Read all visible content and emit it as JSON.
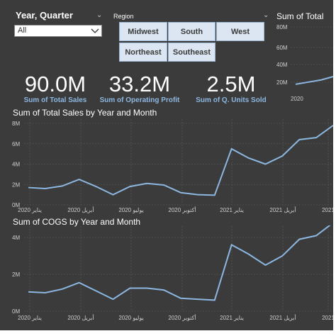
{
  "year_quarter_slicer": {
    "title": "Year, Quarter",
    "selected": "All"
  },
  "region_slicer": {
    "title": "Region",
    "buttons": [
      "Midwest",
      "South",
      "West",
      "Northeast",
      "Southeast"
    ]
  },
  "kpis": [
    {
      "value": "90.0M",
      "label": "Sum of Total Sales"
    },
    {
      "value": "33.2M",
      "label": "Sum of Operating Profit"
    },
    {
      "value": "2.5M",
      "label": "Sum of Q. Units Sold"
    }
  ],
  "colors": {
    "background": "#3b3b3b",
    "line": "#8cb7e0",
    "accent_text": "#8cb7e0",
    "button_fill": "#dce6f2"
  },
  "chart_data": [
    {
      "type": "line",
      "title": "Sum of Total Sales by Year and Month",
      "ylim": [
        0,
        8
      ],
      "y_ticks": [
        "0M",
        "2M",
        "4M",
        "6M",
        "8M"
      ],
      "x_tick_labels": [
        "2020 يناير",
        "2020 أبريل",
        "2020 يوليو",
        "2020 أكتوبر",
        "2021 يناير",
        "2021 أبريل",
        "2021"
      ],
      "values": [
        1.7,
        1.6,
        1.85,
        2.5,
        1.8,
        1.0,
        1.8,
        2.1,
        1.95,
        1.2,
        1.0,
        0.95,
        5.5,
        4.6,
        4.0,
        4.8,
        6.4,
        6.6,
        7.8
      ]
    },
    {
      "type": "line",
      "title": "Sum of COGS by Year and Month",
      "ylim": [
        0,
        5
      ],
      "y_ticks": [
        "0M",
        "2M",
        "4M"
      ],
      "x_tick_labels": [
        "2020 يناير",
        "2020 أبريل",
        "2020 يوليو",
        "2020 أكتوبر",
        "2021 يناير",
        "2021 أبريل",
        "2021"
      ],
      "values": [
        1.05,
        1.0,
        1.2,
        1.55,
        1.1,
        0.65,
        1.25,
        1.25,
        1.15,
        0.7,
        0.65,
        0.6,
        3.6,
        3.1,
        2.5,
        3.0,
        3.9,
        4.1,
        4.8
      ]
    },
    {
      "type": "line",
      "title": "Sum of Total",
      "y_ticks": [
        "20M",
        "40M",
        "60M",
        "80M"
      ],
      "x_tick_labels": [
        "2020"
      ],
      "values": [
        17,
        19.5,
        22,
        26
      ]
    }
  ]
}
